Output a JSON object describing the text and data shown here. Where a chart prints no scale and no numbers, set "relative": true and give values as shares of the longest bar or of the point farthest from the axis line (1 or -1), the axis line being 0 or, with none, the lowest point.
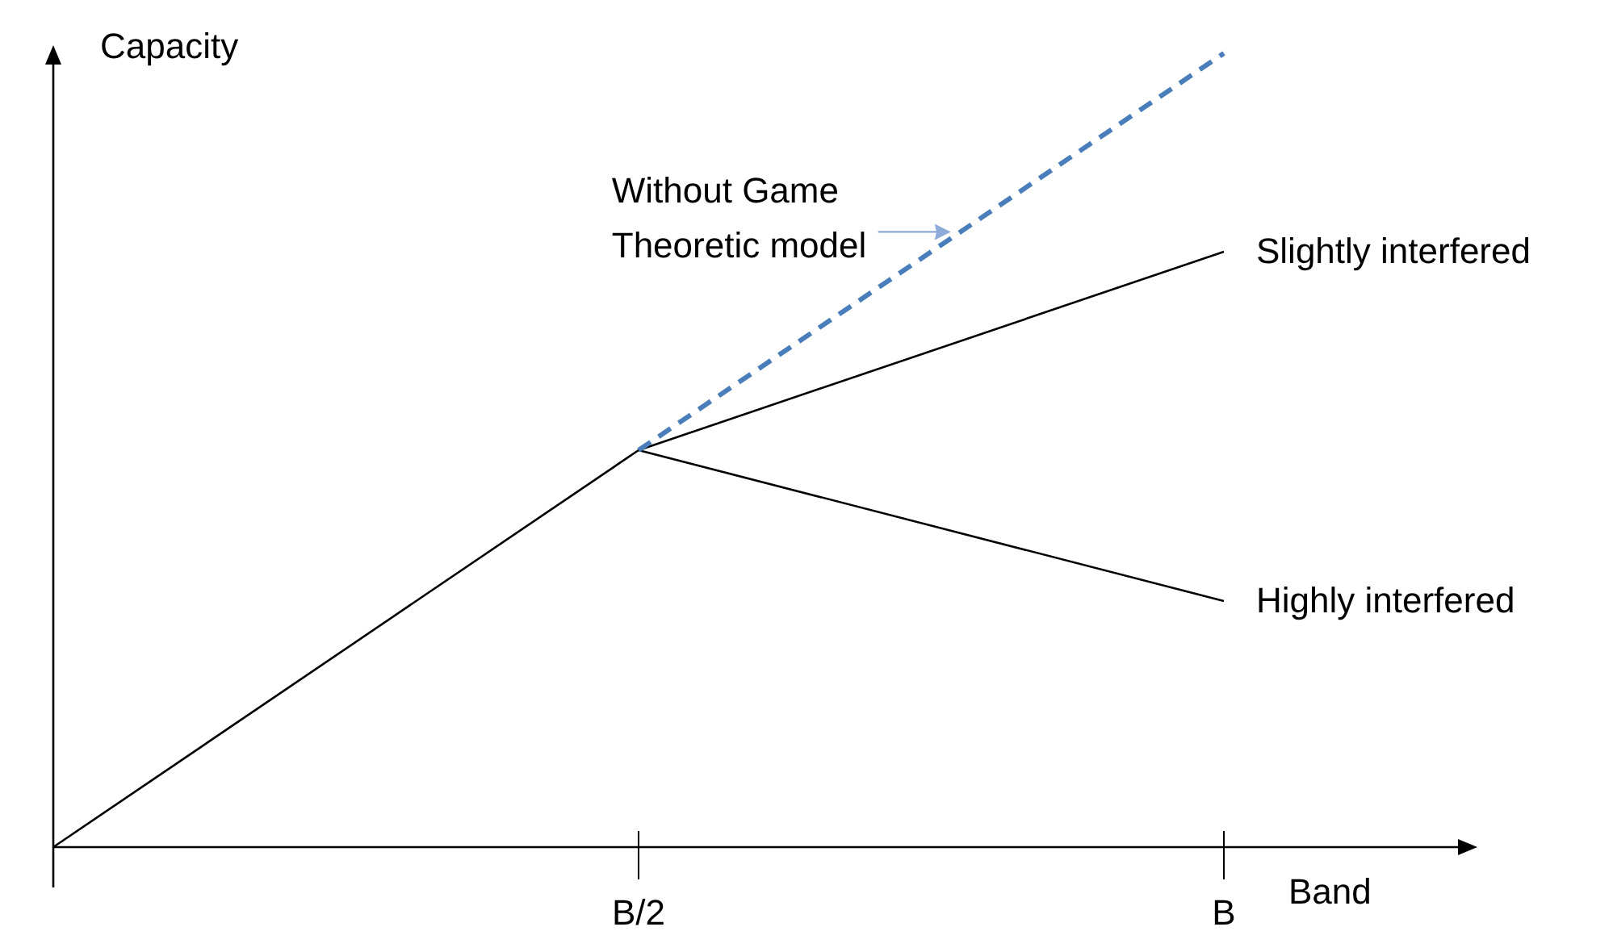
{
  "chart_data": {
    "type": "line",
    "relative": true,
    "xlabel": "Band",
    "ylabel": "Capacity",
    "categories": [
      null,
      "B/2",
      "B"
    ],
    "legend": false,
    "grid": false,
    "series": [
      {
        "name": "Slightly interfered",
        "color": "#000000",
        "values": [
          0,
          0.5,
          0.75
        ]
      },
      {
        "name": "Highly interfered",
        "color": "#000000",
        "values": [
          null,
          0.5,
          0.31
        ]
      },
      {
        "name": "Without Game Theoretic model",
        "color": "#4a7ebb",
        "line_style": "dashed",
        "values": [
          null,
          0.5,
          1
        ]
      }
    ]
  }
}
